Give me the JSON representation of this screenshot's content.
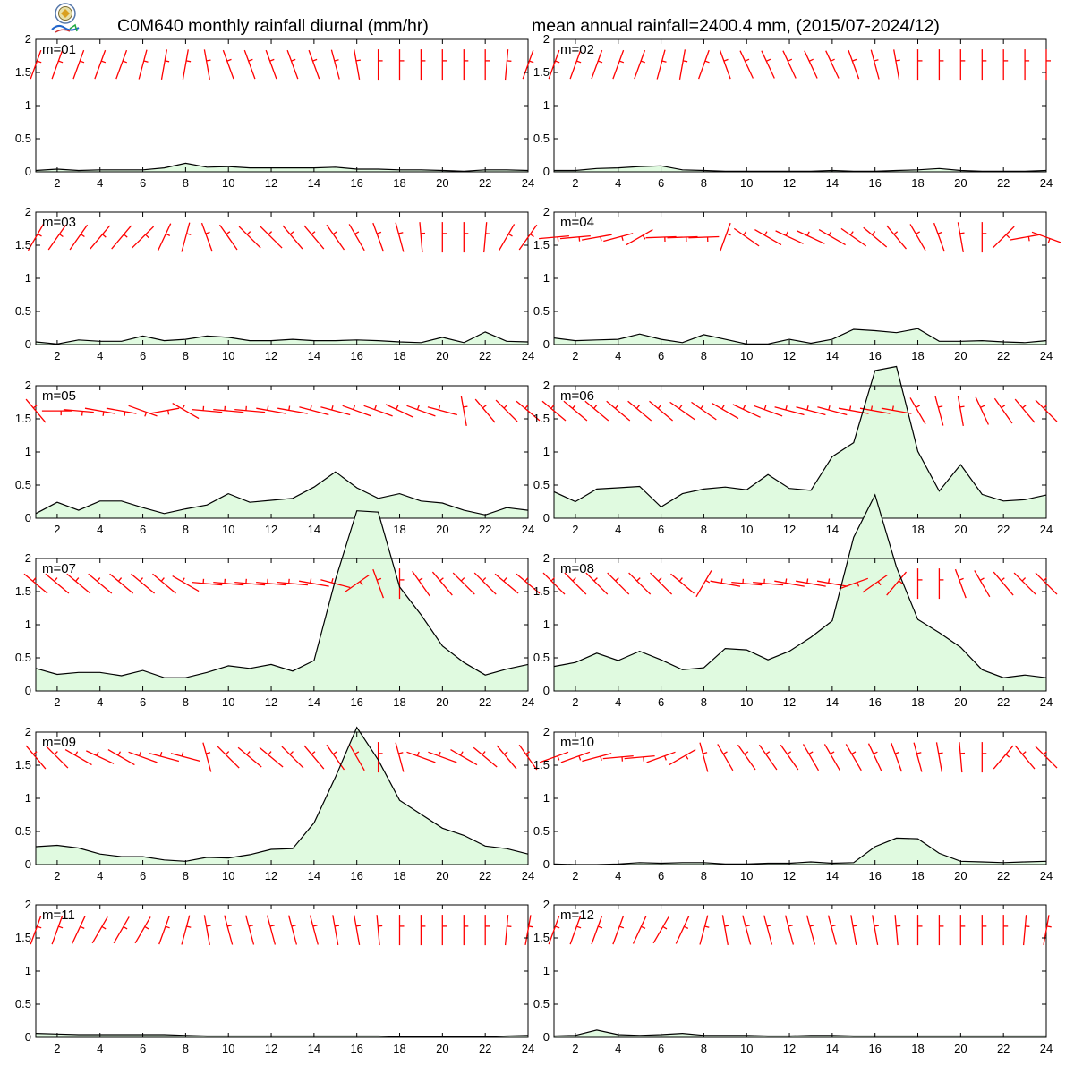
{
  "header": {
    "title_left": "C0M640 monthly rainfall diurnal (mm/hr)",
    "title_right": "mean annual rainfall=2400.4 mm, (2015/07-2024/12)",
    "logo": "lab-logo-icon"
  },
  "colors": {
    "rain_line": "#000000",
    "rain_fill": "#e0fae0",
    "wind_barb": "#ff0000",
    "axis": "#000000"
  },
  "chart_data": [
    {
      "type": "area",
      "panel_label": "m=01",
      "x": [
        1,
        2,
        3,
        4,
        5,
        6,
        7,
        8,
        9,
        10,
        11,
        12,
        13,
        14,
        15,
        16,
        17,
        18,
        19,
        20,
        21,
        22,
        23,
        24
      ],
      "values": [
        0.02,
        0.04,
        0.02,
        0.03,
        0.03,
        0.03,
        0.06,
        0.13,
        0.07,
        0.08,
        0.06,
        0.06,
        0.06,
        0.06,
        0.07,
        0.04,
        0.04,
        0.03,
        0.03,
        0.02,
        0.01,
        0.03,
        0.03,
        0.02
      ],
      "ylim": [
        0,
        2
      ],
      "xlim": [
        1,
        24
      ],
      "xticks": [
        2,
        4,
        6,
        8,
        10,
        12,
        14,
        16,
        18,
        20,
        22,
        24
      ],
      "yticks": [
        0,
        0.5,
        1,
        1.5,
        2
      ],
      "wind_barb_directions_deg": [
        20,
        20,
        20,
        20,
        20,
        15,
        10,
        10,
        -10,
        -20,
        -20,
        -20,
        -20,
        -20,
        -15,
        -10,
        0,
        0,
        0,
        0,
        0,
        0,
        5,
        20
      ]
    },
    {
      "type": "area",
      "panel_label": "m=02",
      "x": [
        1,
        2,
        3,
        4,
        5,
        6,
        7,
        8,
        9,
        10,
        11,
        12,
        13,
        14,
        15,
        16,
        17,
        18,
        19,
        20,
        21,
        22,
        23,
        24
      ],
      "values": [
        0.02,
        0.02,
        0.05,
        0.06,
        0.08,
        0.09,
        0.03,
        0.02,
        0.01,
        0.01,
        0.01,
        0.01,
        0.01,
        0.02,
        0.01,
        0.01,
        0.02,
        0.03,
        0.05,
        0.02,
        0.01,
        0.01,
        0.01,
        0.02
      ],
      "ylim": [
        0,
        2
      ],
      "xlim": [
        1,
        24
      ],
      "xticks": [
        2,
        4,
        6,
        8,
        10,
        12,
        14,
        16,
        18,
        20,
        22,
        24
      ],
      "yticks": [
        0,
        0.5,
        1,
        1.5,
        2
      ],
      "wind_barb_directions_deg": [
        20,
        20,
        20,
        20,
        20,
        15,
        10,
        20,
        -20,
        -25,
        -25,
        -25,
        -25,
        -25,
        -20,
        -15,
        -10,
        0,
        0,
        0,
        0,
        0,
        0,
        0
      ]
    },
    {
      "type": "area",
      "panel_label": "m=03",
      "x": [
        1,
        2,
        3,
        4,
        5,
        6,
        7,
        8,
        9,
        10,
        11,
        12,
        13,
        14,
        15,
        16,
        17,
        18,
        19,
        20,
        21,
        22,
        23,
        24
      ],
      "values": [
        0.04,
        0.01,
        0.07,
        0.05,
        0.05,
        0.13,
        0.06,
        0.08,
        0.13,
        0.11,
        0.06,
        0.06,
        0.08,
        0.06,
        0.06,
        0.07,
        0.06,
        0.04,
        0.03,
        0.11,
        0.03,
        0.19,
        0.05,
        0.04
      ],
      "ylim": [
        0,
        2
      ],
      "xlim": [
        1,
        24
      ],
      "xticks": [
        2,
        4,
        6,
        8,
        10,
        12,
        14,
        16,
        18,
        20,
        22,
        24
      ],
      "yticks": [
        0,
        0.5,
        1,
        1.5,
        2
      ],
      "wind_barb_directions_deg": [
        30,
        35,
        35,
        40,
        40,
        45,
        25,
        15,
        -20,
        -35,
        -45,
        -45,
        -40,
        -40,
        -35,
        -30,
        -20,
        -15,
        -5,
        0,
        0,
        5,
        30,
        35
      ]
    },
    {
      "type": "area",
      "panel_label": "m=04",
      "x": [
        1,
        2,
        3,
        4,
        5,
        6,
        7,
        8,
        9,
        10,
        11,
        12,
        13,
        14,
        15,
        16,
        17,
        18,
        19,
        20,
        21,
        22,
        23,
        24
      ],
      "values": [
        0.1,
        0.06,
        0.07,
        0.08,
        0.16,
        0.08,
        0.03,
        0.15,
        0.08,
        0.01,
        0.01,
        0.08,
        0.02,
        0.08,
        0.23,
        0.21,
        0.18,
        0.24,
        0.05,
        0.05,
        0.06,
        0.04,
        0.03,
        0.06
      ],
      "ylim": [
        0,
        2
      ],
      "xlim": [
        1,
        24
      ],
      "xticks": [
        2,
        4,
        6,
        8,
        10,
        12,
        14,
        16,
        18,
        20,
        22,
        24
      ],
      "yticks": [
        0,
        0.5,
        1,
        1.5,
        2
      ],
      "wind_barb_directions_deg": [
        85,
        85,
        80,
        75,
        60,
        88,
        88,
        88,
        20,
        -55,
        -60,
        -65,
        -65,
        -60,
        -55,
        -50,
        -40,
        -30,
        -20,
        -10,
        0,
        45,
        80,
        110
      ]
    },
    {
      "type": "area",
      "panel_label": "m=05",
      "x": [
        1,
        2,
        3,
        4,
        5,
        6,
        7,
        8,
        9,
        10,
        11,
        12,
        13,
        14,
        15,
        16,
        17,
        18,
        19,
        20,
        21,
        22,
        23,
        24
      ],
      "values": [
        0.07,
        0.24,
        0.12,
        0.26,
        0.26,
        0.16,
        0.07,
        0.14,
        0.2,
        0.37,
        0.24,
        0.27,
        0.3,
        0.47,
        0.7,
        0.46,
        0.3,
        0.37,
        0.26,
        0.23,
        0.12,
        0.05,
        0.16,
        0.12
      ],
      "ylim": [
        0,
        2
      ],
      "xlim": [
        1,
        24
      ],
      "xticks": [
        2,
        4,
        6,
        8,
        10,
        12,
        14,
        16,
        18,
        20,
        22,
        24
      ],
      "yticks": [
        0,
        0.5,
        1,
        1.5,
        2
      ],
      "wind_barb_directions_deg": [
        -40,
        90,
        95,
        100,
        100,
        110,
        80,
        -60,
        -85,
        -85,
        -85,
        -80,
        -80,
        -75,
        -75,
        -70,
        -70,
        -65,
        -70,
        -75,
        -10,
        -40,
        -45,
        -50
      ]
    },
    {
      "type": "area",
      "panel_label": "m=06",
      "x": [
        1,
        2,
        3,
        4,
        5,
        6,
        7,
        8,
        9,
        10,
        11,
        12,
        13,
        14,
        15,
        16,
        17,
        18,
        19,
        20,
        21,
        22,
        23,
        24
      ],
      "values": [
        0.4,
        0.25,
        0.44,
        0.46,
        0.48,
        0.17,
        0.37,
        0.44,
        0.47,
        0.43,
        0.66,
        0.45,
        0.42,
        0.93,
        1.14,
        2.23,
        2.29,
        1.01,
        0.41,
        0.81,
        0.36,
        0.26,
        0.28,
        0.35
      ],
      "ylim": [
        0,
        2
      ],
      "xlim": [
        1,
        24
      ],
      "xticks": [
        2,
        4,
        6,
        8,
        10,
        12,
        14,
        16,
        18,
        20,
        22,
        24
      ],
      "yticks": [
        0,
        0.5,
        1,
        1.5,
        2
      ],
      "wind_barb_directions_deg": [
        -50,
        -50,
        -50,
        -50,
        -50,
        -50,
        -55,
        -55,
        -60,
        -65,
        -70,
        -75,
        -75,
        -75,
        -80,
        -80,
        -80,
        -30,
        -15,
        -10,
        -25,
        -35,
        -40,
        -45
      ]
    },
    {
      "type": "area",
      "panel_label": "m=07",
      "x": [
        1,
        2,
        3,
        4,
        5,
        6,
        7,
        8,
        9,
        10,
        11,
        12,
        13,
        14,
        15,
        16,
        17,
        18,
        19,
        20,
        21,
        22,
        23,
        24
      ],
      "values": [
        0.34,
        0.25,
        0.28,
        0.28,
        0.23,
        0.31,
        0.2,
        0.2,
        0.28,
        0.38,
        0.34,
        0.4,
        0.3,
        0.46,
        1.68,
        2.72,
        2.7,
        1.57,
        1.15,
        0.68,
        0.43,
        0.24,
        0.33,
        0.4
      ],
      "ylim": [
        0,
        2
      ],
      "xlim": [
        1,
        24
      ],
      "xticks": [
        2,
        4,
        6,
        8,
        10,
        12,
        14,
        16,
        18,
        20,
        22,
        24
      ],
      "yticks": [
        0,
        0.5,
        1,
        1.5,
        2
      ],
      "wind_barb_directions_deg": [
        -50,
        -50,
        -50,
        -50,
        -50,
        -50,
        -50,
        -60,
        -85,
        -85,
        -85,
        -85,
        -85,
        -80,
        -75,
        55,
        -20,
        0,
        -35,
        -40,
        -45,
        -45,
        -50,
        -50
      ]
    },
    {
      "type": "area",
      "panel_label": "m=08",
      "x": [
        1,
        2,
        3,
        4,
        5,
        6,
        7,
        8,
        9,
        10,
        11,
        12,
        13,
        14,
        15,
        16,
        17,
        18,
        19,
        20,
        21,
        22,
        23,
        24
      ],
      "values": [
        0.37,
        0.43,
        0.57,
        0.46,
        0.6,
        0.47,
        0.32,
        0.35,
        0.64,
        0.62,
        0.47,
        0.6,
        0.81,
        1.06,
        2.32,
        2.96,
        1.87,
        1.08,
        0.88,
        0.66,
        0.32,
        0.2,
        0.24,
        0.2
      ],
      "ylim": [
        0,
        2
      ],
      "xlim": [
        1,
        24
      ],
      "xticks": [
        2,
        4,
        6,
        8,
        10,
        12,
        14,
        16,
        18,
        20,
        22,
        24
      ],
      "yticks": [
        0,
        0.5,
        1,
        1.5,
        2
      ],
      "wind_barb_directions_deg": [
        -45,
        -45,
        -45,
        -45,
        -45,
        -45,
        -50,
        30,
        -80,
        -85,
        -85,
        -80,
        -80,
        -80,
        70,
        55,
        40,
        0,
        0,
        -20,
        -30,
        -40,
        -45,
        -45
      ]
    },
    {
      "type": "area",
      "panel_label": "m=09",
      "x": [
        1,
        2,
        3,
        4,
        5,
        6,
        7,
        8,
        9,
        10,
        11,
        12,
        13,
        14,
        15,
        16,
        17,
        18,
        19,
        20,
        21,
        22,
        23,
        24
      ],
      "values": [
        0.27,
        0.29,
        0.25,
        0.16,
        0.12,
        0.12,
        0.07,
        0.05,
        0.11,
        0.1,
        0.15,
        0.23,
        0.24,
        0.63,
        1.32,
        2.07,
        1.58,
        0.97,
        0.76,
        0.55,
        0.44,
        0.28,
        0.24,
        0.16
      ],
      "ylim": [
        0,
        2
      ],
      "xlim": [
        1,
        24
      ],
      "xticks": [
        2,
        4,
        6,
        8,
        10,
        12,
        14,
        16,
        18,
        20,
        22,
        24
      ],
      "yticks": [
        0,
        0.5,
        1,
        1.5,
        2
      ],
      "wind_barb_directions_deg": [
        -40,
        -45,
        -60,
        -65,
        -60,
        -70,
        -75,
        -75,
        -15,
        -45,
        -50,
        -50,
        -45,
        -40,
        -35,
        -30,
        0,
        -15,
        -70,
        -70,
        -60,
        -50,
        -40,
        -35
      ]
    },
    {
      "type": "area",
      "panel_label": "m=10",
      "x": [
        1,
        2,
        3,
        4,
        5,
        6,
        7,
        8,
        9,
        10,
        11,
        12,
        13,
        14,
        15,
        16,
        17,
        18,
        19,
        20,
        21,
        22,
        23,
        24
      ],
      "values": [
        0.01,
        0.0,
        0.0,
        0.01,
        0.03,
        0.02,
        0.03,
        0.03,
        0.01,
        0.01,
        0.02,
        0.02,
        0.04,
        0.02,
        0.03,
        0.27,
        0.4,
        0.39,
        0.17,
        0.05,
        0.04,
        0.03,
        0.04,
        0.05
      ],
      "ylim": [
        0,
        2
      ],
      "xlim": [
        1,
        24
      ],
      "xticks": [
        2,
        4,
        6,
        8,
        10,
        12,
        14,
        16,
        18,
        20,
        22,
        24
      ],
      "yticks": [
        0,
        0.5,
        1,
        1.5,
        2
      ],
      "wind_barb_directions_deg": [
        70,
        70,
        75,
        85,
        85,
        70,
        60,
        -15,
        -30,
        -35,
        -35,
        -35,
        -30,
        -30,
        -30,
        -25,
        -20,
        -15,
        -10,
        -5,
        0,
        40,
        -40,
        -45
      ]
    },
    {
      "type": "area",
      "panel_label": "m=11",
      "x": [
        1,
        2,
        3,
        4,
        5,
        6,
        7,
        8,
        9,
        10,
        11,
        12,
        13,
        14,
        15,
        16,
        17,
        18,
        19,
        20,
        21,
        22,
        23,
        24
      ],
      "values": [
        0.06,
        0.05,
        0.04,
        0.04,
        0.04,
        0.04,
        0.04,
        0.03,
        0.02,
        0.02,
        0.02,
        0.02,
        0.02,
        0.02,
        0.02,
        0.02,
        0.02,
        0.01,
        0.01,
        0.01,
        0.01,
        0.01,
        0.02,
        0.03
      ],
      "ylim": [
        0,
        2
      ],
      "xlim": [
        1,
        24
      ],
      "xticks": [
        2,
        4,
        6,
        8,
        10,
        12,
        14,
        16,
        18,
        20,
        22,
        24
      ],
      "yticks": [
        0,
        0.5,
        1,
        1.5,
        2
      ],
      "wind_barb_directions_deg": [
        20,
        20,
        25,
        30,
        30,
        30,
        20,
        15,
        -10,
        -15,
        -15,
        -15,
        -15,
        -15,
        -10,
        -10,
        -5,
        0,
        0,
        0,
        0,
        0,
        5,
        10
      ]
    },
    {
      "type": "area",
      "panel_label": "m=12",
      "x": [
        1,
        2,
        3,
        4,
        5,
        6,
        7,
        8,
        9,
        10,
        11,
        12,
        13,
        14,
        15,
        16,
        17,
        18,
        19,
        20,
        21,
        22,
        23,
        24
      ],
      "values": [
        0.02,
        0.03,
        0.11,
        0.04,
        0.03,
        0.04,
        0.06,
        0.03,
        0.03,
        0.03,
        0.02,
        0.02,
        0.03,
        0.03,
        0.02,
        0.02,
        0.02,
        0.02,
        0.02,
        0.02,
        0.02,
        0.02,
        0.02,
        0.02
      ],
      "ylim": [
        0,
        2
      ],
      "xlim": [
        1,
        24
      ],
      "xticks": [
        2,
        4,
        6,
        8,
        10,
        12,
        14,
        16,
        18,
        20,
        22,
        24
      ],
      "yticks": [
        0,
        0.5,
        1,
        1.5,
        2
      ],
      "wind_barb_directions_deg": [
        20,
        20,
        20,
        20,
        25,
        30,
        25,
        15,
        -10,
        -15,
        -15,
        -15,
        -15,
        -15,
        -10,
        -10,
        -5,
        0,
        0,
        0,
        0,
        0,
        5,
        10
      ]
    }
  ]
}
